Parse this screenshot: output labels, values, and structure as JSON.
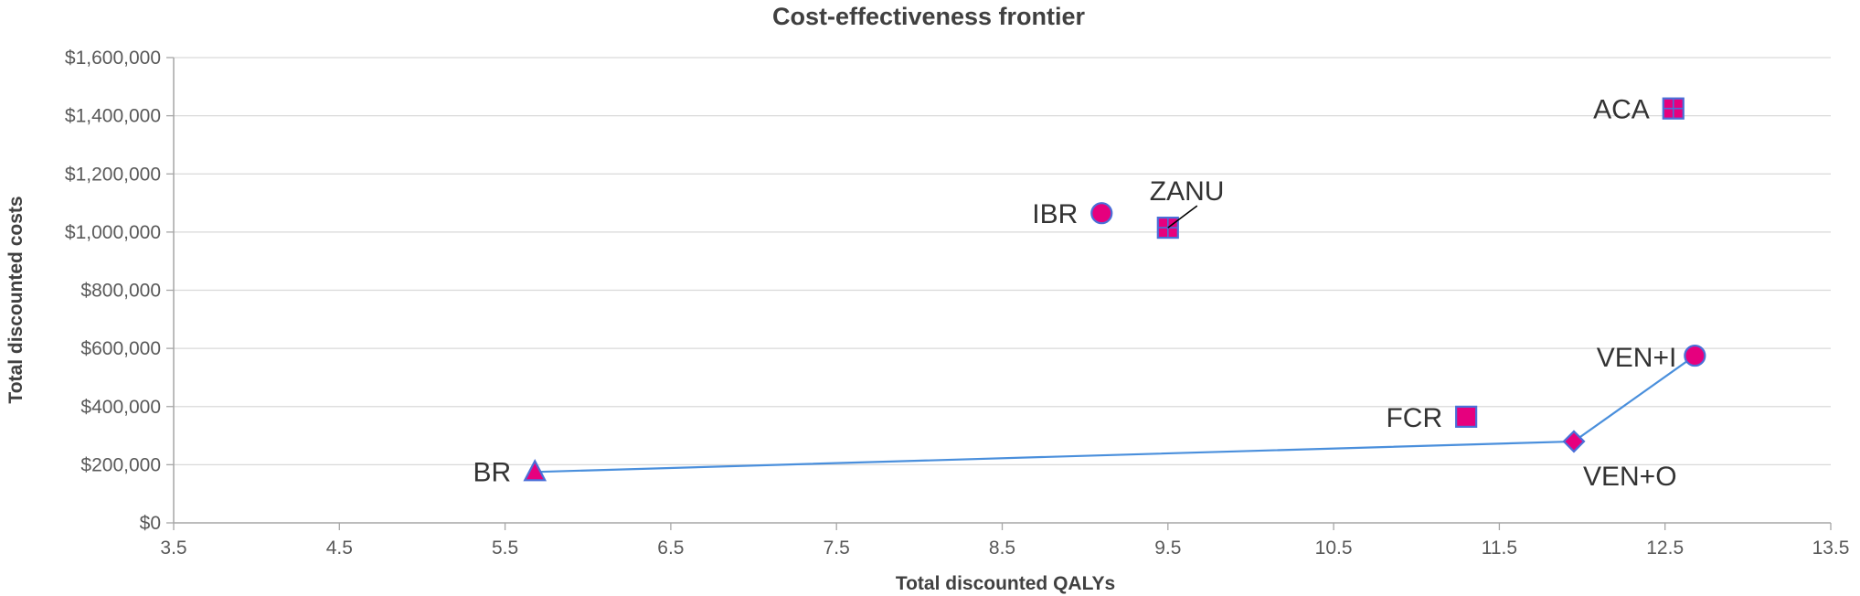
{
  "chart_data": {
    "type": "scatter",
    "title": "Cost-effectiveness frontier",
    "xlabel": "Total discounted QALYs",
    "ylabel": "Total discounted costs",
    "xlim": [
      3.5,
      13.5
    ],
    "ylim": [
      0,
      1600000
    ],
    "x_ticks": [
      "3.5",
      "4.5",
      "5.5",
      "6.5",
      "7.5",
      "8.5",
      "9.5",
      "10.5",
      "11.5",
      "12.5",
      "13.5"
    ],
    "y_ticks": [
      "$0",
      "$200,000",
      "$400,000",
      "$600,000",
      "$800,000",
      "$1,000,000",
      "$1,200,000",
      "$1,400,000",
      "$1,600,000"
    ],
    "grid": "horizontal",
    "colors": {
      "marker_fill": "#e6007e",
      "marker_edge": "#4a6fd8",
      "frontier_line": "#4a8fdc",
      "grid": "#d9d9d9"
    },
    "points": [
      {
        "label": "BR",
        "x": 5.68,
        "y": 175000,
        "marker": "triangle"
      },
      {
        "label": "IBR",
        "x": 9.1,
        "y": 1065000,
        "marker": "circle"
      },
      {
        "label": "ZANU",
        "x": 9.5,
        "y": 1015000,
        "marker": "square-cross"
      },
      {
        "label": "ACA",
        "x": 12.55,
        "y": 1425000,
        "marker": "square-cross"
      },
      {
        "label": "FCR",
        "x": 11.3,
        "y": 365000,
        "marker": "square"
      },
      {
        "label": "VEN+O",
        "x": 11.95,
        "y": 280000,
        "marker": "diamond"
      },
      {
        "label": "VEN+I",
        "x": 12.68,
        "y": 575000,
        "marker": "circle"
      }
    ],
    "frontier": [
      "BR",
      "VEN+O",
      "VEN+I"
    ]
  }
}
